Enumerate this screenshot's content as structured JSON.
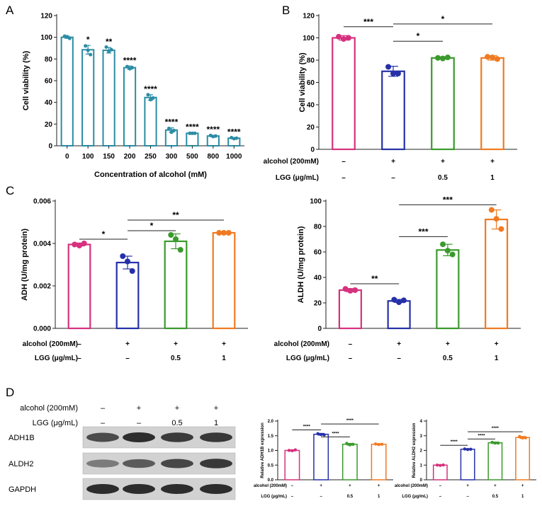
{
  "panel_labels": [
    "A",
    "B",
    "C",
    "D"
  ],
  "chart_data": [
    {
      "id": "A",
      "type": "bar",
      "title": "",
      "xlabel": "Concentration of alcohol (mM)",
      "ylabel": "Cell viability (%)",
      "categories": [
        "0",
        "100",
        "150",
        "200",
        "250",
        "300",
        "500",
        "800",
        "1000"
      ],
      "values": [
        100,
        88.5,
        88,
        72,
        44.5,
        14.5,
        11.5,
        9,
        7
      ],
      "points": [
        [
          101,
          100.5,
          99
        ],
        [
          92,
          88,
          84
        ],
        [
          91,
          87,
          88.5
        ],
        [
          73,
          71,
          72
        ],
        [
          47,
          42.5,
          44
        ],
        [
          16,
          12.5,
          14
        ],
        [
          11.5,
          11.5,
          11.5
        ],
        [
          9.5,
          8.5,
          9
        ],
        [
          7.5,
          6.5,
          7
        ]
      ],
      "errors": [
        1,
        4,
        2.5,
        1.5,
        2.5,
        2,
        0.5,
        0.7,
        0.5
      ],
      "significance": [
        "",
        "*",
        "**",
        "****",
        "****",
        "****",
        "****",
        "****",
        "****"
      ],
      "ylim": [
        0,
        120
      ],
      "yticks": [
        0,
        20,
        40,
        60,
        80,
        100,
        120
      ],
      "color": "#2a8ca4"
    },
    {
      "id": "B",
      "type": "bar",
      "ylabel": "Cell viability (%)",
      "ylim": [
        0,
        120
      ],
      "yticks": [
        0,
        20,
        40,
        60,
        80,
        100,
        120
      ],
      "values": [
        100,
        70,
        82,
        82
      ],
      "points": [
        [
          101,
          99,
          100
        ],
        [
          74,
          68,
          68
        ],
        [
          82,
          81.5,
          82.5
        ],
        [
          83,
          82.5,
          81
        ]
      ],
      "errors": [
        2,
        4.5,
        1,
        2
      ],
      "colors": [
        "#d6317e",
        "#2530a8",
        "#3a9a2c",
        "#f07a22"
      ],
      "conditions": [
        {
          "label": "alcohol (200mM)",
          "values": [
            "–",
            "+",
            "+",
            "+"
          ]
        },
        {
          "label": "LGG (μg/mL)",
          "values": [
            "–",
            "–",
            "0.5",
            "1"
          ]
        }
      ],
      "brackets": [
        {
          "from": 0,
          "to": 1,
          "y": 110,
          "label": "***"
        },
        {
          "from": 1,
          "to": 3,
          "y": 112.5,
          "label": "*"
        },
        {
          "from": 1,
          "to": 2,
          "y": 97,
          "label": "*"
        }
      ]
    },
    {
      "id": "C-ADH",
      "type": "bar",
      "ylabel": "ADH (U/mg protein)",
      "ylim": [
        0,
        0.006
      ],
      "yticks": [
        "0.000",
        "0.002",
        "0.004",
        "0.006"
      ],
      "values": [
        0.00395,
        0.0031,
        0.0041,
        0.0045
      ],
      "points": [
        [
          0.00395,
          0.0039,
          0.004
        ],
        [
          0.0034,
          0.00315,
          0.0027
        ],
        [
          0.0044,
          0.0042,
          0.0037
        ],
        [
          0.0045,
          0.0045,
          0.0045
        ]
      ],
      "errors": [
        7e-05,
        0.0003,
        0.00035,
        4e-05
      ],
      "colors": [
        "#d6317e",
        "#2530a8",
        "#3a9a2c",
        "#f07a22"
      ],
      "conditions": [
        {
          "label": "alcohol (200mM)",
          "values": [
            "–",
            "+",
            "+",
            "+"
          ]
        },
        {
          "label": "LGG (μg/mL)",
          "values": [
            "–",
            "–",
            "0.5",
            "1"
          ]
        }
      ],
      "brackets": [
        {
          "from": 0,
          "to": 1,
          "y": 0.0042,
          "label": "*"
        },
        {
          "from": 1,
          "to": 3,
          "y": 0.0051,
          "label": "**"
        },
        {
          "from": 1,
          "to": 2,
          "y": 0.0046,
          "label": "*"
        }
      ]
    },
    {
      "id": "C-ALDH",
      "type": "bar",
      "ylabel": "ALDH (U/mg protein)",
      "ylim": [
        0,
        100
      ],
      "yticks": [
        0,
        20,
        40,
        60,
        80,
        100
      ],
      "values": [
        30,
        21.5,
        61.5,
        85.5
      ],
      "points": [
        [
          31,
          29.5,
          30
        ],
        [
          22.5,
          20.5,
          22
        ],
        [
          66,
          61,
          58
        ],
        [
          93,
          86,
          78
        ]
      ],
      "errors": [
        1.2,
        1.2,
        4.5,
        7.5
      ],
      "colors": [
        "#d6317e",
        "#2530a8",
        "#3a9a2c",
        "#f07a22"
      ],
      "conditions": [
        {
          "label": "alcohol (200mM)",
          "values": [
            "–",
            "+",
            "+",
            "+"
          ]
        },
        {
          "label": "LGG (μg/mL)",
          "values": [
            "–",
            "–",
            "0.5",
            "1"
          ]
        }
      ],
      "brackets": [
        {
          "from": 0,
          "to": 1,
          "y": 35,
          "label": "**"
        },
        {
          "from": 1,
          "to": 2,
          "y": 72,
          "label": "***"
        },
        {
          "from": 1,
          "to": 3,
          "y": 97,
          "label": "***"
        }
      ]
    },
    {
      "id": "D-ADH1B",
      "type": "bar",
      "ylabel": "Relative ADH1B expression",
      "ylim": [
        0,
        2.0
      ],
      "yticks": [
        "0.0",
        "0.5",
        "1.0",
        "1.5",
        "2.0"
      ],
      "values": [
        1.0,
        1.55,
        1.21,
        1.21
      ],
      "points": [
        [
          1.0,
          0.99,
          1.02
        ],
        [
          1.57,
          1.54,
          1.53
        ],
        [
          1.24,
          1.19,
          1.21
        ],
        [
          1.22,
          1.2,
          1.21
        ]
      ],
      "errors": [
        0.02,
        0.03,
        0.03,
        0.02
      ],
      "colors": [
        "#d6317e",
        "#2530a8",
        "#3a9a2c",
        "#f07a22"
      ],
      "conditions": [
        {
          "label": "alcohol (200mM)",
          "values": [
            "–",
            "+",
            "+",
            "+"
          ]
        },
        {
          "label": "LGG (μg/mL)",
          "values": [
            "–",
            "–",
            "0.5",
            "1"
          ]
        }
      ],
      "brackets": [
        {
          "from": 0,
          "to": 1,
          "y": 1.7,
          "label": "****"
        },
        {
          "from": 1,
          "to": 3,
          "y": 1.9,
          "label": "****"
        },
        {
          "from": 1,
          "to": 2,
          "y": 1.46,
          "label": "****"
        }
      ]
    },
    {
      "id": "D-ALDH2",
      "type": "bar",
      "ylabel": "Relative ALDH2 expression",
      "ylim": [
        0,
        4
      ],
      "yticks": [
        "0",
        "1",
        "2",
        "3",
        "4"
      ],
      "values": [
        1.0,
        2.08,
        2.52,
        2.88
      ],
      "points": [
        [
          1.0,
          0.98,
          1.01
        ],
        [
          2.1,
          2.06,
          2.08
        ],
        [
          2.55,
          2.5,
          2.5
        ],
        [
          2.95,
          2.85,
          2.86
        ]
      ],
      "errors": [
        0.03,
        0.04,
        0.05,
        0.07
      ],
      "colors": [
        "#d6317e",
        "#2530a8",
        "#3a9a2c",
        "#f07a22"
      ],
      "conditions": [
        {
          "label": "alcohol (200mM)",
          "values": [
            "–",
            "+",
            "+",
            "+"
          ]
        },
        {
          "label": "LGG (μg/mL)",
          "values": [
            "–",
            "–",
            "0.5",
            "1"
          ]
        }
      ],
      "brackets": [
        {
          "from": 0,
          "to": 1,
          "y": 2.35,
          "label": "****"
        },
        {
          "from": 1,
          "to": 2,
          "y": 2.78,
          "label": "****"
        },
        {
          "from": 1,
          "to": 3,
          "y": 3.27,
          "label": "****"
        }
      ]
    }
  ],
  "blot": {
    "conditions": [
      {
        "label": "alcohol (200mM)",
        "values": [
          "–",
          "+",
          "+",
          "+"
        ]
      },
      {
        "label": "LGG (μg/mL)",
        "values": [
          "–",
          "–",
          "0.5",
          "1"
        ]
      }
    ],
    "bands": [
      {
        "label": "ADH1B",
        "intensity": [
          0.7,
          0.85,
          0.78,
          0.8
        ]
      },
      {
        "label": "ALDH2",
        "intensity": [
          0.45,
          0.62,
          0.72,
          0.8
        ]
      },
      {
        "label": "GAPDH",
        "intensity": [
          0.85,
          0.85,
          0.85,
          0.85
        ]
      }
    ]
  }
}
